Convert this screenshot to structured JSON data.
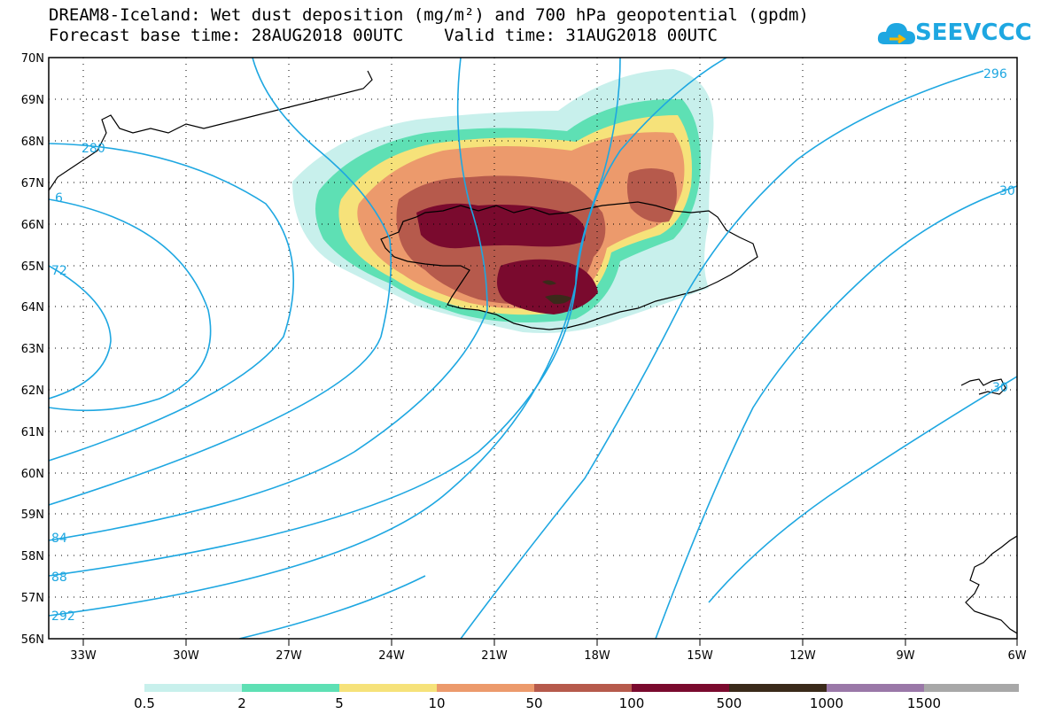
{
  "title": {
    "line1": "DREAM8-Iceland: Wet dust deposition (mg/m²) and 700 hPa geopotential (gpdm)",
    "line2": "Forecast base time: 28AUG2018 00UTC    Valid time: 31AUG2018 00UTC"
  },
  "logo": {
    "text": "SEEVCCC",
    "icon": "cloud-icon"
  },
  "map": {
    "lat_labels": [
      "70N",
      "69N",
      "68N",
      "67N",
      "66N",
      "65N",
      "64N",
      "63N",
      "62N",
      "61N",
      "60N",
      "59N",
      "58N",
      "57N",
      "56N"
    ],
    "lon_labels": [
      "33W",
      "30W",
      "27W",
      "24W",
      "21W",
      "18W",
      "15W",
      "12W",
      "9W",
      "6W"
    ],
    "contour_labels": [
      "280",
      "6",
      "72",
      "84",
      "88",
      "292",
      "296",
      "30",
      "30"
    ],
    "contour_color": "#1ea7e1"
  },
  "legend": {
    "labels": [
      "0.5",
      "2",
      "5",
      "10",
      "50",
      "100",
      "500",
      "1000",
      "1500"
    ],
    "colors": [
      "#c8f0ec",
      "#5ee0b4",
      "#f6e27a",
      "#ec9a6c",
      "#b65a4c",
      "#7a0a2e",
      "#3a2a1a",
      "#9a78a8",
      "#a8a8a8"
    ]
  }
}
